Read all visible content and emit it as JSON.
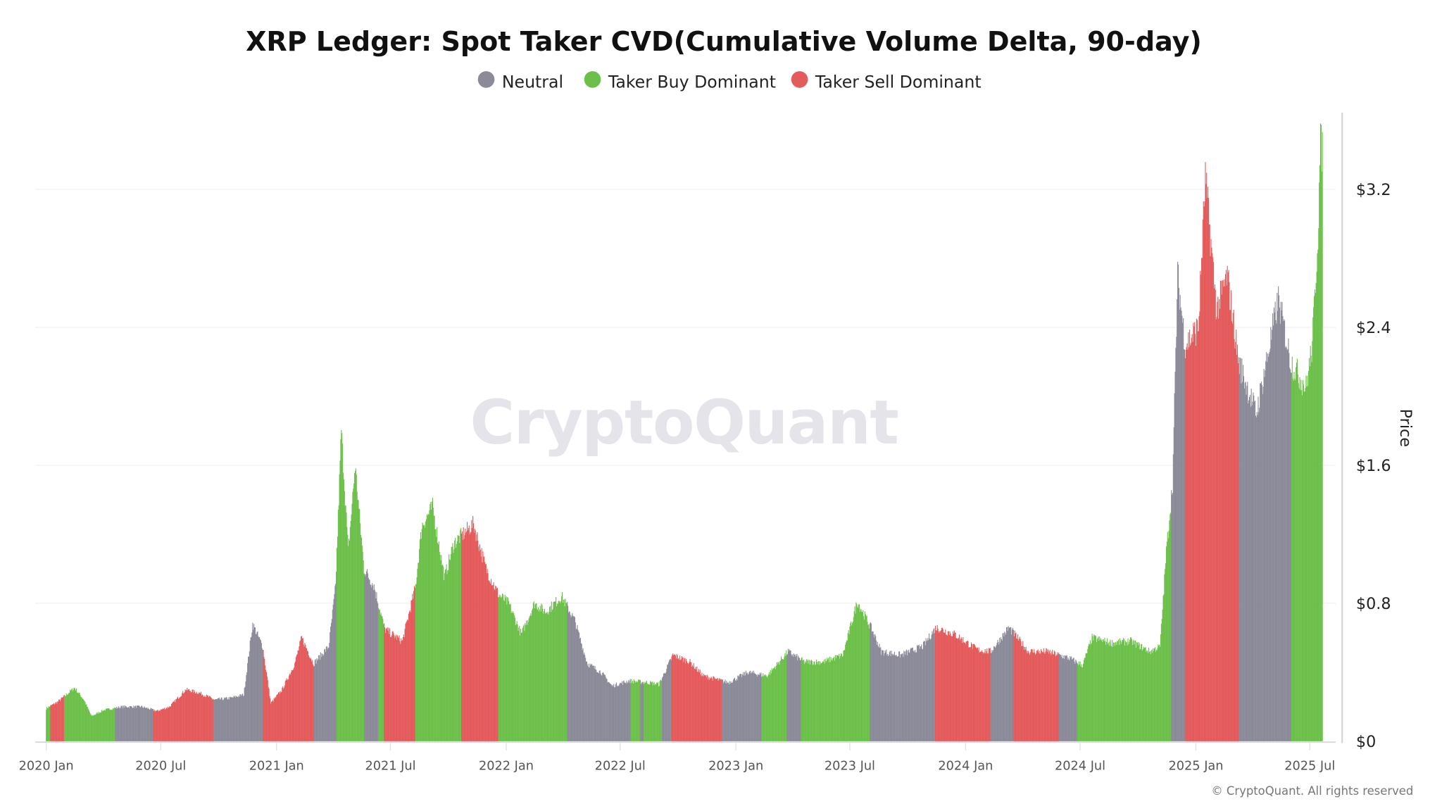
{
  "chart_data": {
    "type": "bar",
    "title": "XRP Ledger: Spot Taker CVD(Cumulative Volume Delta, 90-day)",
    "ylabel": "Price",
    "xlabel": "",
    "ylim": [
      0,
      3.5
    ],
    "grid": true,
    "legend_position": "top",
    "y_axis_side": "right",
    "y_ticks": [
      "$0",
      "$0.8",
      "$1.6",
      "$2.4",
      "$3.2"
    ],
    "y_tick_values": [
      0,
      0.8,
      1.6,
      2.4,
      3.2
    ],
    "x_ticks": [
      {
        "label": "2020 Jan",
        "date": "2020-01-01"
      },
      {
        "label": "2020 Jul",
        "date": "2020-07-01"
      },
      {
        "label": "2021 Jan",
        "date": "2021-01-01"
      },
      {
        "label": "2021 Jul",
        "date": "2021-07-01"
      },
      {
        "label": "2022 Jan",
        "date": "2022-01-01"
      },
      {
        "label": "2022 Jul",
        "date": "2022-07-01"
      },
      {
        "label": "2023 Jan",
        "date": "2023-01-01"
      },
      {
        "label": "2023 Jul",
        "date": "2023-07-01"
      },
      {
        "label": "2024 Jan",
        "date": "2024-01-01"
      },
      {
        "label": "2024 Jul",
        "date": "2024-07-01"
      },
      {
        "label": "2025 Jan",
        "date": "2025-01-01"
      },
      {
        "label": "2025 Jul",
        "date": "2025-07-01"
      }
    ],
    "legend": [
      {
        "key": "neutral",
        "label": "Neutral",
        "color": "#8b8a98"
      },
      {
        "key": "buy",
        "label": "Taker Buy Dominant",
        "color": "#6cc04a"
      },
      {
        "key": "sell",
        "label": "Taker Sell Dominant",
        "color": "#e45b5b"
      }
    ],
    "price": [
      [
        "2020-01-01",
        0.19
      ],
      [
        "2020-01-20",
        0.23
      ],
      [
        "2020-02-15",
        0.31
      ],
      [
        "2020-03-01",
        0.24
      ],
      [
        "2020-03-13",
        0.145
      ],
      [
        "2020-04-01",
        0.18
      ],
      [
        "2020-05-01",
        0.2
      ],
      [
        "2020-06-01",
        0.2
      ],
      [
        "2020-06-25",
        0.175
      ],
      [
        "2020-07-15",
        0.2
      ],
      [
        "2020-08-10",
        0.3
      ],
      [
        "2020-09-01",
        0.28
      ],
      [
        "2020-09-25",
        0.24
      ],
      [
        "2020-10-20",
        0.25
      ],
      [
        "2020-11-10",
        0.27
      ],
      [
        "2020-11-24",
        0.68
      ],
      [
        "2020-12-10",
        0.55
      ],
      [
        "2020-12-23",
        0.22
      ],
      [
        "2021-01-10",
        0.3
      ],
      [
        "2021-01-30",
        0.45
      ],
      [
        "2021-02-10",
        0.6
      ],
      [
        "2021-03-01",
        0.45
      ],
      [
        "2021-03-25",
        0.55
      ],
      [
        "2021-04-05",
        0.9
      ],
      [
        "2021-04-14",
        1.81
      ],
      [
        "2021-04-25",
        1.1
      ],
      [
        "2021-05-06",
        1.6
      ],
      [
        "2021-05-20",
        1.0
      ],
      [
        "2021-06-05",
        0.9
      ],
      [
        "2021-06-22",
        0.65
      ],
      [
        "2021-07-20",
        0.58
      ],
      [
        "2021-08-10",
        0.9
      ],
      [
        "2021-08-20",
        1.25
      ],
      [
        "2021-09-06",
        1.36
      ],
      [
        "2021-09-25",
        0.95
      ],
      [
        "2021-10-10",
        1.15
      ],
      [
        "2021-11-10",
        1.26
      ],
      [
        "2021-11-30",
        1.0
      ],
      [
        "2021-12-20",
        0.85
      ],
      [
        "2022-01-05",
        0.8
      ],
      [
        "2022-01-25",
        0.62
      ],
      [
        "2022-02-15",
        0.8
      ],
      [
        "2022-03-05",
        0.75
      ],
      [
        "2022-03-30",
        0.84
      ],
      [
        "2022-04-20",
        0.7
      ],
      [
        "2022-05-10",
        0.45
      ],
      [
        "2022-06-01",
        0.4
      ],
      [
        "2022-06-18",
        0.32
      ],
      [
        "2022-07-15",
        0.35
      ],
      [
        "2022-08-15",
        0.34
      ],
      [
        "2022-09-01",
        0.33
      ],
      [
        "2022-09-23",
        0.5
      ],
      [
        "2022-10-20",
        0.46
      ],
      [
        "2022-11-10",
        0.38
      ],
      [
        "2022-12-20",
        0.34
      ],
      [
        "2023-01-20",
        0.4
      ],
      [
        "2023-02-20",
        0.38
      ],
      [
        "2023-03-25",
        0.52
      ],
      [
        "2023-04-20",
        0.46
      ],
      [
        "2023-05-20",
        0.46
      ],
      [
        "2023-06-20",
        0.5
      ],
      [
        "2023-07-13",
        0.81
      ],
      [
        "2023-08-05",
        0.65
      ],
      [
        "2023-08-20",
        0.52
      ],
      [
        "2023-09-20",
        0.5
      ],
      [
        "2023-10-25",
        0.55
      ],
      [
        "2023-11-15",
        0.66
      ],
      [
        "2023-12-15",
        0.62
      ],
      [
        "2024-01-20",
        0.53
      ],
      [
        "2024-02-10",
        0.52
      ],
      [
        "2024-03-10",
        0.66
      ],
      [
        "2024-04-10",
        0.52
      ],
      [
        "2024-05-10",
        0.52
      ],
      [
        "2024-06-15",
        0.48
      ],
      [
        "2024-07-05",
        0.44
      ],
      [
        "2024-07-20",
        0.6
      ],
      [
        "2024-08-20",
        0.57
      ],
      [
        "2024-09-20",
        0.58
      ],
      [
        "2024-10-20",
        0.52
      ],
      [
        "2024-11-05",
        0.55
      ],
      [
        "2024-11-15",
        1.1
      ],
      [
        "2024-11-25",
        1.5
      ],
      [
        "2024-12-03",
        2.7
      ],
      [
        "2024-12-15",
        2.3
      ],
      [
        "2025-01-05",
        2.4
      ],
      [
        "2025-01-16",
        3.27
      ],
      [
        "2025-02-03",
        2.5
      ],
      [
        "2025-02-20",
        2.7
      ],
      [
        "2025-03-10",
        2.2
      ],
      [
        "2025-04-07",
        1.9
      ],
      [
        "2025-05-12",
        2.56
      ],
      [
        "2025-06-01",
        2.2
      ],
      [
        "2025-06-25",
        2.05
      ],
      [
        "2025-07-05",
        2.3
      ],
      [
        "2025-07-14",
        2.95
      ],
      [
        "2025-07-18",
        3.46
      ],
      [
        "2025-07-21",
        3.42
      ]
    ],
    "regimes": [
      [
        "2020-01-01",
        "2020-01-08",
        "buy"
      ],
      [
        "2020-01-08",
        "2020-01-30",
        "sell"
      ],
      [
        "2020-01-30",
        "2020-04-20",
        "buy"
      ],
      [
        "2020-04-20",
        "2020-06-19",
        "neutral"
      ],
      [
        "2020-06-19",
        "2020-09-23",
        "sell"
      ],
      [
        "2020-09-23",
        "2020-12-11",
        "neutral"
      ],
      [
        "2020-12-11",
        "2021-03-02",
        "sell"
      ],
      [
        "2021-03-02",
        "2021-04-07",
        "neutral"
      ],
      [
        "2021-04-07",
        "2021-05-21",
        "buy"
      ],
      [
        "2021-05-21",
        "2021-06-12",
        "neutral"
      ],
      [
        "2021-06-12",
        "2021-06-21",
        "buy"
      ],
      [
        "2021-06-21",
        "2021-08-10",
        "sell"
      ],
      [
        "2021-08-10",
        "2021-10-22",
        "buy"
      ],
      [
        "2021-10-22",
        "2021-12-20",
        "sell"
      ],
      [
        "2021-12-20",
        "2022-04-08",
        "buy"
      ],
      [
        "2022-04-08",
        "2022-07-18",
        "neutral"
      ],
      [
        "2022-07-18",
        "2022-08-02",
        "buy"
      ],
      [
        "2022-08-02",
        "2022-08-08",
        "neutral"
      ],
      [
        "2022-08-08",
        "2022-09-06",
        "buy"
      ],
      [
        "2022-09-06",
        "2022-09-21",
        "neutral"
      ],
      [
        "2022-09-21",
        "2022-12-10",
        "sell"
      ],
      [
        "2022-12-10",
        "2023-02-11",
        "neutral"
      ],
      [
        "2023-02-11",
        "2023-03-23",
        "buy"
      ],
      [
        "2023-03-23",
        "2023-04-15",
        "neutral"
      ],
      [
        "2023-04-15",
        "2023-08-02",
        "buy"
      ],
      [
        "2023-08-02",
        "2023-11-14",
        "neutral"
      ],
      [
        "2023-11-14",
        "2024-02-10",
        "sell"
      ],
      [
        "2024-02-10",
        "2024-03-17",
        "neutral"
      ],
      [
        "2024-03-17",
        "2024-05-29",
        "sell"
      ],
      [
        "2024-05-29",
        "2024-06-27",
        "neutral"
      ],
      [
        "2024-06-27",
        "2024-11-23",
        "buy"
      ],
      [
        "2024-11-23",
        "2024-12-15",
        "neutral"
      ],
      [
        "2024-12-15",
        "2025-03-11",
        "sell"
      ],
      [
        "2025-03-11",
        "2025-06-02",
        "neutral"
      ],
      [
        "2025-06-02",
        "2025-07-22",
        "buy"
      ]
    ]
  },
  "watermark": "CryptoQuant",
  "footer": "© CryptoQuant. All rights reserved"
}
